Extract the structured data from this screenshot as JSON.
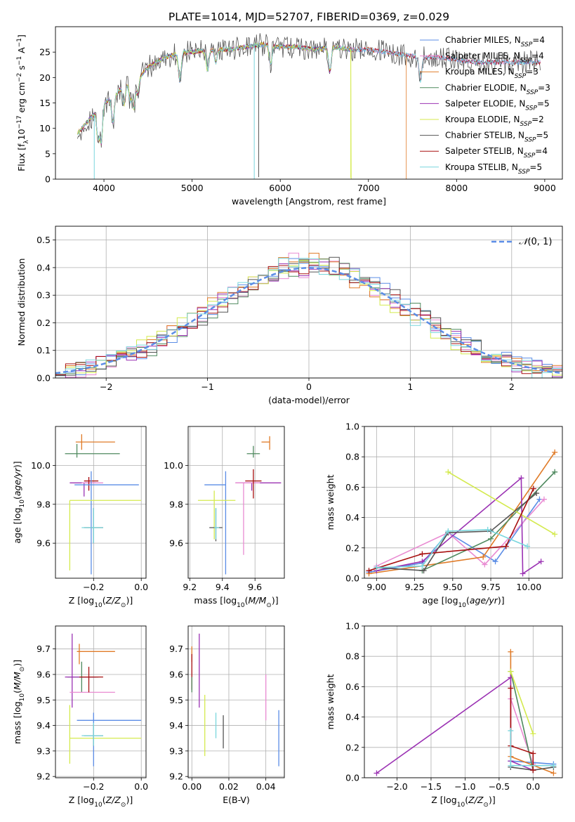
{
  "title": "PLATE=1014, MJD=52707, FIBERID=0369, z=0.029",
  "colors": {
    "Chabrier MILES": "#5b8de6",
    "Salpeter MILES": "#e98bd2",
    "Kroupa MILES": "#e07b28",
    "Chabrier ELODIE": "#4f8a5f",
    "Salpeter ELODIE": "#9b32b3",
    "Kroupa ELODIE": "#d4ea4e",
    "Chabrier STELIB": "#555555",
    "Salpeter STELIB": "#a81010",
    "Kroupa STELIB": "#79d6dd",
    "gaussian": "#5b8de6"
  },
  "chart_data": [
    {
      "id": "spectrum",
      "type": "line",
      "title": "PLATE=1014, MJD=52707, FIBERID=0369, z=0.029",
      "xlabel": "wavelength [Angstrom, rest frame]",
      "ylabel": "Flux [f_λ 10^-17 erg cm^-2 s^-1 A^-1]",
      "xlim": [
        3450,
        9200
      ],
      "ylim": [
        0,
        30
      ],
      "xticks": [
        4000,
        5000,
        6000,
        7000,
        8000,
        9000
      ],
      "yticks": [
        0,
        5,
        10,
        15,
        20,
        25
      ],
      "grid": false,
      "legend_position": "top-right",
      "legend": [
        "Chabrier MILES, N_SSP=4",
        "Salpeter MILES, N_SSP=4",
        "Kroupa MILES, N_SSP=3",
        "Chabrier ELODIE, N_SSP=3",
        "Salpeter ELODIE, N_SSP=5",
        "Kroupa ELODIE, N_SSP=2",
        "Chabrier STELIB, N_SSP=5",
        "Salpeter STELIB, N_SSP=4",
        "Kroupa STELIB, N_SSP=5"
      ],
      "continuum": {
        "x": [
          3700,
          3800,
          3900,
          4000,
          4100,
          4200,
          4300,
          4400,
          4500,
          4600,
          4700,
          4800,
          4900,
          5000,
          5200,
          5400,
          5600,
          5800,
          6000,
          6200,
          6400,
          6600,
          6800,
          7000,
          7200,
          7400,
          7600,
          7800,
          8000,
          8200,
          8400,
          8600,
          8800
        ],
        "y": [
          9,
          11,
          13,
          15,
          16,
          18,
          19,
          20,
          22,
          23,
          24,
          24.5,
          25,
          25,
          25.5,
          25.5,
          26,
          26.5,
          26,
          26,
          25.5,
          26,
          25.5,
          25.5,
          25,
          24.5,
          24,
          24,
          23.5,
          23,
          23,
          23,
          23
        ]
      }
    },
    {
      "id": "histogram",
      "type": "step",
      "xlabel": "(data-model)/error",
      "ylabel": "Normed distribution",
      "xlim": [
        -2.5,
        2.5
      ],
      "ylim": [
        0,
        0.55
      ],
      "xticks": [
        -2,
        -1,
        0,
        1,
        2
      ],
      "yticks": [
        0.0,
        0.1,
        0.2,
        0.3,
        0.4,
        0.5
      ],
      "grid": true,
      "legend_position": "top-right",
      "legend": [
        "𝒩(0, 1)"
      ],
      "bin_width": 0.1
    },
    {
      "id": "age-vs-Z",
      "type": "errorbar",
      "xlabel": "Z [log10(Z/Z⊙)]",
      "ylabel": "age  [log10(age/yr)]",
      "xlim": [
        -0.36,
        0.02
      ],
      "ylim": [
        9.42,
        10.2
      ],
      "xticks": [
        -0.2,
        0.0
      ],
      "yticks": [
        9.6,
        9.8,
        10.0
      ],
      "grid": true,
      "points": [
        {
          "model": "Kroupa MILES",
          "x": -0.25,
          "xerr": [
            0.025,
            0.14
          ],
          "y": 10.12,
          "yerr": [
            0.04,
            0.04
          ]
        },
        {
          "model": "Chabrier ELODIE",
          "x": -0.27,
          "xerr": [
            0.05,
            0.18
          ],
          "y": 10.06,
          "yerr": [
            0.02,
            0.05
          ]
        },
        {
          "model": "Salpeter ELODIE",
          "x": -0.24,
          "xerr": [
            0.06,
            0.05
          ],
          "y": 9.91,
          "yerr": [
            0.07,
            0.0
          ]
        },
        {
          "model": "Salpeter MILES",
          "x": -0.22,
          "xerr": [
            0.03,
            0.06
          ],
          "y": 9.91,
          "yerr": [
            0.04,
            0.03
          ]
        },
        {
          "model": "Salpeter STELIB",
          "x": -0.22,
          "xerr": [
            0.02,
            0.04
          ],
          "y": 9.92,
          "yerr": [
            0.05,
            0.02
          ]
        },
        {
          "model": "Chabrier MILES",
          "x": -0.21,
          "xerr": [
            0.07,
            0.2
          ],
          "y": 9.9,
          "yerr": [
            0.46,
            0.07
          ]
        },
        {
          "model": "Kroupa ELODIE",
          "x": -0.3,
          "xerr": [
            0.0,
            0.3
          ],
          "y": 9.82,
          "yerr": [
            0.36,
            0.0
          ]
        },
        {
          "model": "Chabrier STELIB",
          "x": -0.2,
          "xerr": [
            0.04,
            0.04
          ],
          "y": 9.68,
          "yerr": [
            0.08,
            0.1
          ]
        },
        {
          "model": "Kroupa STELIB",
          "x": -0.2,
          "xerr": [
            0.05,
            0.04
          ],
          "y": 9.68,
          "yerr": [
            0.08,
            0.1
          ]
        }
      ]
    },
    {
      "id": "age-vs-mass",
      "type": "errorbar",
      "xlabel": "mass [log10(M/M⊙)]",
      "ylabel": "",
      "xlim": [
        9.19,
        9.78
      ],
      "ylim": [
        9.42,
        10.2
      ],
      "xticks": [
        9.2,
        9.4,
        9.6
      ],
      "yticks": [
        9.6,
        9.8,
        10.0
      ],
      "grid": true,
      "points": [
        {
          "model": "Kroupa MILES",
          "x": 9.69,
          "xerr": [
            0.05,
            0.0
          ],
          "y": 10.12,
          "yerr": [
            0.04,
            0.03
          ]
        },
        {
          "model": "Chabrier ELODIE",
          "x": 9.59,
          "xerr": [
            0.04,
            0.04
          ],
          "y": 10.06,
          "yerr": [
            0.02,
            0.04
          ]
        },
        {
          "model": "Salpeter ELODIE",
          "x": 9.58,
          "xerr": [
            0.1,
            0.18
          ],
          "y": 9.91,
          "yerr": [
            0.04,
            0.0
          ]
        },
        {
          "model": "Salpeter MILES",
          "x": 9.53,
          "xerr": [
            0.05,
            0.1
          ],
          "y": 9.91,
          "yerr": [
            0.37,
            0.0
          ]
        },
        {
          "model": "Salpeter STELIB",
          "x": 9.59,
          "xerr": [
            0.05,
            0.05
          ],
          "y": 9.92,
          "yerr": [
            0.09,
            0.06
          ]
        },
        {
          "model": "Chabrier MILES",
          "x": 9.42,
          "xerr": [
            0.13,
            0.0
          ],
          "y": 9.9,
          "yerr": [
            0.46,
            0.07
          ]
        },
        {
          "model": "Kroupa ELODIE",
          "x": 9.35,
          "xerr": [
            0.1,
            0.13
          ],
          "y": 9.82,
          "yerr": [
            0.2,
            0.05
          ]
        },
        {
          "model": "Chabrier STELIB",
          "x": 9.36,
          "xerr": [
            0.04,
            0.04
          ],
          "y": 9.68,
          "yerr": [
            0.07,
            0.1
          ]
        },
        {
          "model": "Kroupa STELIB",
          "x": 9.36,
          "xerr": [
            0.01,
            0.02
          ],
          "y": 9.68,
          "yerr": [
            0.06,
            0.1
          ]
        }
      ]
    },
    {
      "id": "weight-vs-age",
      "type": "line",
      "xlabel": "age  [log10(age/yr)]",
      "ylabel": "mass weight",
      "xlim": [
        8.92,
        10.22
      ],
      "ylim": [
        0,
        1.0
      ],
      "xticks": [
        9.0,
        9.25,
        9.5,
        9.75,
        10.0
      ],
      "yticks": [
        0.0,
        0.2,
        0.4,
        0.6,
        0.8,
        1.0
      ],
      "grid": true,
      "series": [
        {
          "model": "Chabrier MILES",
          "x": [
            8.95,
            9.3,
            9.47,
            9.78,
            10.07
          ],
          "y": [
            0.04,
            0.1,
            0.3,
            0.11,
            0.52
          ]
        },
        {
          "model": "Salpeter MILES",
          "x": [
            9.0,
            9.47,
            9.71,
            10.1
          ],
          "y": [
            0.08,
            0.3,
            0.09,
            0.52
          ]
        },
        {
          "model": "Kroupa MILES",
          "x": [
            8.95,
            9.7,
            10.17
          ],
          "y": [
            0.03,
            0.14,
            0.83
          ]
        },
        {
          "model": "Chabrier ELODIE",
          "x": [
            9.3,
            9.75,
            10.17
          ],
          "y": [
            0.05,
            0.26,
            0.7
          ]
        },
        {
          "model": "Salpeter ELODIE",
          "x": [
            9.0,
            9.3,
            9.95,
            9.96,
            10.08
          ],
          "y": [
            0.05,
            0.11,
            0.66,
            0.03,
            0.11
          ]
        },
        {
          "model": "Kroupa ELODIE",
          "x": [
            9.47,
            10.17
          ],
          "y": [
            0.7,
            0.29
          ]
        },
        {
          "model": "Chabrier STELIB",
          "x": [
            9.0,
            9.31,
            9.47,
            9.75,
            10.05
          ],
          "y": [
            0.07,
            0.05,
            0.3,
            0.31,
            0.56
          ]
        },
        {
          "model": "Salpeter STELIB",
          "x": [
            8.95,
            9.3,
            9.85,
            10.03
          ],
          "y": [
            0.05,
            0.16,
            0.21,
            0.59
          ]
        },
        {
          "model": "Kroupa STELIB",
          "x": [
            9.0,
            9.3,
            9.47,
            9.73,
            9.99
          ],
          "y": [
            0.07,
            0.08,
            0.31,
            0.32,
            0.21
          ]
        }
      ]
    },
    {
      "id": "mass-vs-Z",
      "type": "errorbar",
      "xlabel": "Z [log10(Z/Z⊙)]",
      "ylabel": "mass [log10(M/M⊙)]",
      "xlim": [
        -0.36,
        0.02
      ],
      "ylim": [
        9.195,
        9.79
      ],
      "xticks": [
        -0.2,
        0.0
      ],
      "yticks": [
        9.2,
        9.3,
        9.4,
        9.5,
        9.6,
        9.7
      ],
      "grid": true,
      "points": [
        {
          "model": "Kroupa MILES",
          "x": -0.26,
          "xerr": [
            0.01,
            0.15
          ],
          "y": 9.69,
          "yerr": [
            0.05,
            0.03
          ]
        },
        {
          "model": "Chabrier ELODIE",
          "x": -0.25,
          "xerr": [
            0.06,
            0.07
          ],
          "y": 9.59,
          "yerr": [
            0.06,
            0.06
          ]
        },
        {
          "model": "Salpeter ELODIE",
          "x": -0.29,
          "xerr": [
            0.03,
            0.1
          ],
          "y": 9.59,
          "yerr": [
            0.12,
            0.17
          ]
        },
        {
          "model": "Salpeter MILES",
          "x": -0.3,
          "xerr": [
            0.0,
            0.19
          ],
          "y": 9.53,
          "yerr": [
            0.0,
            0.0
          ]
        },
        {
          "model": "Salpeter STELIB",
          "x": -0.22,
          "xerr": [
            0.04,
            0.06
          ],
          "y": 9.59,
          "yerr": [
            0.06,
            0.04
          ]
        },
        {
          "model": "Chabrier MILES",
          "x": -0.2,
          "xerr": [
            0.07,
            0.2
          ],
          "y": 9.42,
          "yerr": [
            0.18,
            0.03
          ]
        },
        {
          "model": "Kroupa ELODIE",
          "x": -0.3,
          "xerr": [
            0.0,
            0.3
          ],
          "y": 9.35,
          "yerr": [
            0.1,
            0.13
          ]
        },
        {
          "model": "Chabrier STELIB",
          "x": -0.2,
          "xerr": [
            0.04,
            0.04
          ],
          "y": 9.36,
          "yerr": [
            0.04,
            0.04
          ]
        },
        {
          "model": "Kroupa STELIB",
          "x": -0.2,
          "xerr": [
            0.05,
            0.04
          ],
          "y": 9.36,
          "yerr": [
            0.04,
            0.05
          ]
        }
      ]
    },
    {
      "id": "mass-vs-EBV",
      "type": "errorbar",
      "xlabel": "E(B-V)",
      "ylabel": "",
      "xlim": [
        -0.002,
        0.05
      ],
      "ylim": [
        9.195,
        9.79
      ],
      "xticks": [
        0.0,
        0.02,
        0.04
      ],
      "yticks": [
        9.2,
        9.3,
        9.4,
        9.5,
        9.6,
        9.7
      ],
      "grid": true,
      "points": [
        {
          "model": "Kroupa MILES",
          "x": 0.0,
          "xerr": [
            0,
            0
          ],
          "y": 9.69,
          "yerr": [
            0.04,
            0.02
          ]
        },
        {
          "model": "Salpeter STELIB",
          "x": 0.0,
          "xerr": [
            0,
            0
          ],
          "y": 9.6,
          "yerr": [
            0.06,
            0.08
          ]
        },
        {
          "model": "Chabrier ELODIE",
          "x": 0.0,
          "xerr": [
            0,
            0
          ],
          "y": 9.59,
          "yerr": [
            0.06,
            0.0
          ]
        },
        {
          "model": "Salpeter ELODIE",
          "x": 0.004,
          "xerr": [
            0,
            0
          ],
          "y": 9.62,
          "yerr": [
            0.15,
            0.14
          ]
        },
        {
          "model": "Kroupa ELODIE",
          "x": 0.007,
          "xerr": [
            0,
            0
          ],
          "y": 9.38,
          "yerr": [
            0.1,
            0.14
          ]
        },
        {
          "model": "Kroupa STELIB",
          "x": 0.013,
          "xerr": [
            0,
            0
          ],
          "y": 9.39,
          "yerr": [
            0.04,
            0.06
          ]
        },
        {
          "model": "Chabrier STELIB",
          "x": 0.017,
          "xerr": [
            0,
            0
          ],
          "y": 9.38,
          "yerr": [
            0.07,
            0.06
          ]
        },
        {
          "model": "Salpeter MILES",
          "x": 0.04,
          "xerr": [
            0,
            0
          ],
          "y": 9.5,
          "yerr": [
            0.08,
            0.1
          ]
        },
        {
          "model": "Chabrier MILES",
          "x": 0.047,
          "xerr": [
            0,
            0
          ],
          "y": 9.35,
          "yerr": [
            0.11,
            0.11
          ]
        }
      ]
    },
    {
      "id": "weight-vs-Z",
      "type": "line",
      "xlabel": "Z [log10(Z/Z⊙)]",
      "ylabel": "mass weight",
      "xlim": [
        -2.48,
        0.43
      ],
      "ylim": [
        0,
        1.0
      ],
      "xticks": [
        -2.0,
        -1.5,
        -1.0,
        -0.5,
        0.0
      ],
      "yticks": [
        0.0,
        0.2,
        0.4,
        0.6,
        0.8,
        1.0
      ],
      "grid": true,
      "series": [
        {
          "model": "Chabrier MILES",
          "x": [
            -0.33,
            0.0,
            0.3
          ],
          "y": [
            0.11,
            0.1,
            0.09
          ]
        },
        {
          "model": "Salpeter MILES",
          "x": [
            -0.33,
            0.0
          ],
          "y": [
            0.52,
            0.09
          ]
        },
        {
          "model": "Kroupa MILES",
          "x": [
            -0.33,
            -0.33,
            0.3
          ],
          "y": [
            0.83,
            0.14,
            0.03
          ]
        },
        {
          "model": "Chabrier ELODIE",
          "x": [
            -0.33,
            0.0
          ],
          "y": [
            0.7,
            0.05
          ]
        },
        {
          "model": "Salpeter ELODIE",
          "x": [
            -2.3,
            -0.33,
            -0.33,
            0.0
          ],
          "y": [
            0.03,
            0.66,
            0.11,
            0.05
          ]
        },
        {
          "model": "Kroupa ELODIE",
          "x": [
            -0.33,
            0.0
          ],
          "y": [
            0.7,
            0.29
          ]
        },
        {
          "model": "Chabrier STELIB",
          "x": [
            -0.33,
            0.0,
            0.3
          ],
          "y": [
            0.07,
            0.05,
            0.07
          ]
        },
        {
          "model": "Salpeter STELIB",
          "x": [
            -0.33,
            -0.33,
            0.0,
            0.0
          ],
          "y": [
            0.59,
            0.21,
            0.16,
            0.05
          ]
        },
        {
          "model": "Kroupa STELIB",
          "x": [
            -0.33,
            -0.33,
            0.3
          ],
          "y": [
            0.31,
            0.08,
            0.08
          ]
        }
      ]
    }
  ]
}
